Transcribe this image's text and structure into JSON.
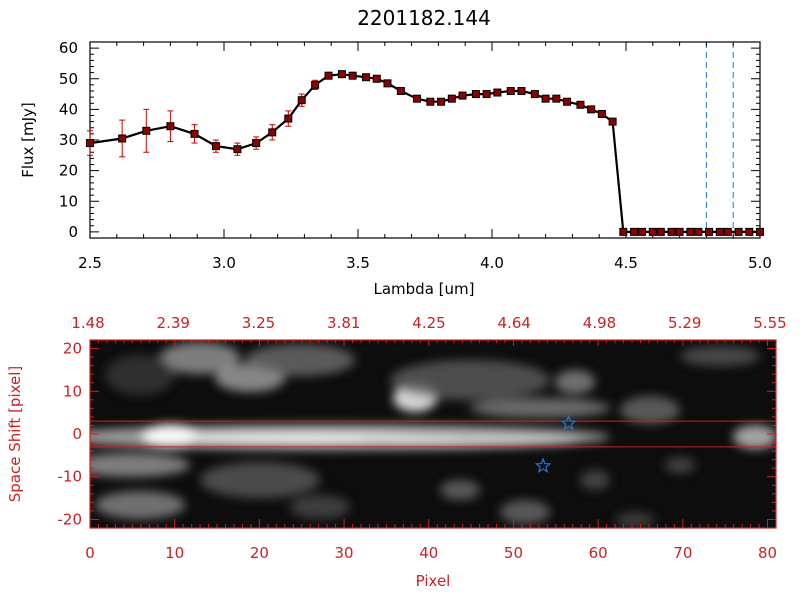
{
  "colors": {
    "line": "#000000",
    "marker": "#8b0000",
    "errorbar": "#cc0000",
    "bottom_axes": "#cc2222",
    "dashed": "#1e78d6",
    "star": "#1e78d6"
  },
  "chart_data": [
    {
      "type": "line",
      "title": "2201182.144",
      "xlabel": "Lambda [um]",
      "ylabel": "Flux [mJy]",
      "xlim": [
        2.5,
        5.0
      ],
      "ylim": [
        -2,
        62
      ],
      "x_ticks": [
        "2.5",
        "3.0",
        "3.5",
        "4.0",
        "4.5",
        "5.0"
      ],
      "y_ticks": [
        "0",
        "10",
        "20",
        "30",
        "40",
        "50",
        "60"
      ],
      "grid": false,
      "vertical_lines": [
        4.8,
        4.9
      ],
      "series": [
        {
          "x": [
            2.5,
            2.62,
            2.71,
            2.8,
            2.89,
            2.97,
            3.05,
            3.12,
            3.18,
            3.24,
            3.29,
            3.34,
            3.39,
            3.44,
            3.48,
            3.53,
            3.57,
            3.61,
            3.66,
            3.72,
            3.77,
            3.81,
            3.85,
            3.89,
            3.94,
            3.98,
            4.02,
            4.07,
            4.11,
            4.16,
            4.2,
            4.24,
            4.28,
            4.33,
            4.37,
            4.41,
            4.45,
            4.49,
            4.53,
            4.56,
            4.6,
            4.63,
            4.67,
            4.7,
            4.74,
            4.77,
            4.81,
            4.85,
            4.88,
            4.92,
            4.96,
            5.0
          ],
          "y": [
            29,
            30.5,
            33,
            34.5,
            32,
            28,
            27,
            29,
            32.5,
            37,
            43,
            48,
            51,
            51.5,
            51,
            50.5,
            50,
            48.5,
            46,
            43.5,
            42.5,
            42.5,
            43.5,
            44.5,
            45,
            45,
            45.5,
            46,
            46,
            45,
            43.5,
            43.5,
            42.5,
            41.5,
            40,
            38.5,
            36,
            0,
            0,
            0,
            0,
            0,
            0,
            0,
            0,
            0,
            0,
            0,
            0,
            0,
            0,
            0
          ],
          "yerr": [
            4,
            6,
            7,
            5,
            3,
            2,
            2,
            2,
            2.5,
            2.5,
            2,
            1.5,
            1,
            1,
            1,
            1,
            1,
            1,
            1,
            1,
            1,
            1,
            1,
            1,
            1,
            1,
            1,
            1,
            1,
            1,
            1,
            1,
            1,
            1,
            1,
            1,
            1,
            0,
            0,
            0,
            0,
            0,
            0,
            0,
            0,
            0,
            0,
            0,
            0,
            0,
            0,
            0
          ]
        }
      ]
    },
    {
      "type": "heatmap",
      "xlabel": "Pixel",
      "ylabel": "Space Shift [pixel]",
      "xlim": [
        0,
        81
      ],
      "ylim": [
        -22,
        22
      ],
      "x_ticks": [
        "0",
        "10",
        "20",
        "30",
        "40",
        "50",
        "60",
        "70",
        "80"
      ],
      "y_ticks": [
        "-20",
        "-10",
        "0",
        "10",
        "20"
      ],
      "top_ticks": [
        "1.48",
        "2.39",
        "3.25",
        "3.81",
        "4.25",
        "4.64",
        "4.98",
        "5.29",
        "5.55"
      ],
      "extraction_band": [
        -3,
        3
      ],
      "markers": [
        {
          "x": 56.5,
          "y": 2.5
        },
        {
          "x": 53.5,
          "y": -7.5
        }
      ]
    }
  ]
}
